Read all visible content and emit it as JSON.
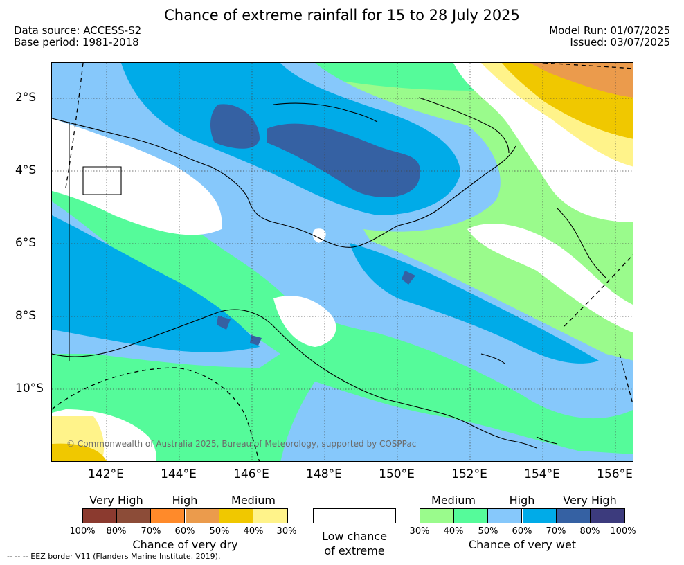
{
  "title": "Chance of extreme rainfall for 15 to 28 July 2025",
  "meta": {
    "data_source": "Data source: ACCESS-S2",
    "base_period": "Base period: 1981-2018",
    "model_run": "Model Run: 01/07/2025",
    "issued": "Issued: 03/07/2025"
  },
  "axes": {
    "lat_labels": [
      "2°S",
      "4°S",
      "6°S",
      "8°S",
      "10°S"
    ],
    "lon_labels": [
      "142°E",
      "144°E",
      "146°E",
      "148°E",
      "150°E",
      "152°E",
      "154°E",
      "156°E"
    ]
  },
  "copyright": "© Commonwealth of Australia 2025, Bureau of Meteorology, supported by COSPPac",
  "eez_note": "--  --  -- EEZ border V11 (Flanders Marine Institute, 2019).",
  "legend": {
    "dry": {
      "tiers": [
        "Very High",
        "High",
        "Medium"
      ],
      "ticks": [
        "100%",
        "80%",
        "70%",
        "60%",
        "50%",
        "40%",
        "30%"
      ],
      "colors": [
        "#8b3a2f",
        "#8c4c38",
        "#ff8a2a",
        "#eb9b4c",
        "#f0c800",
        "#fff38a"
      ],
      "title": "Chance of very dry"
    },
    "neutral": {
      "title_line1": "Low chance",
      "title_line2": "of extreme",
      "color": "#ffffff"
    },
    "wet": {
      "tiers": [
        "Medium",
        "High",
        "Very High"
      ],
      "ticks": [
        "30%",
        "40%",
        "50%",
        "60%",
        "70%",
        "80%",
        "100%"
      ],
      "colors": [
        "#9afb8c",
        "#55fb9a",
        "#86c8fb",
        "#00abe8",
        "#3561a3",
        "#3c3b7d"
      ],
      "title": "Chance of very wet"
    }
  },
  "map_colors": {
    "ocean_base": "#9afb8c",
    "wet_medium_hi": "#55fb9a",
    "wet_high": "#86c8fb",
    "wet_high_hi": "#00abe8",
    "wet_very_high": "#3561a3",
    "dry_low": "#fff38a",
    "dry_mid": "#f0c800",
    "dry_high": "#eb9b4c",
    "neutral": "#ffffff"
  }
}
